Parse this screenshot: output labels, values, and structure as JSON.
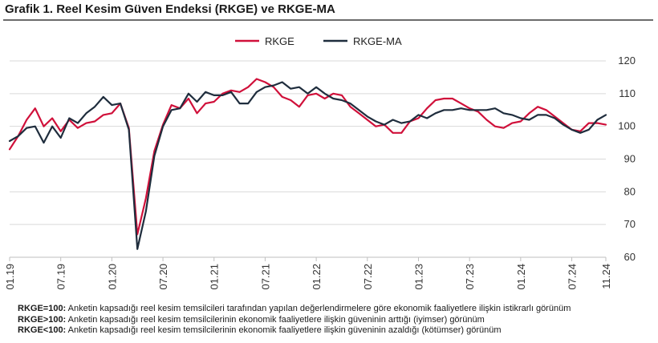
{
  "title": "Grafik 1. Reel Kesim Güven Endeksi (RKGE) ve RKGE-MA",
  "colors": {
    "RKGE": "#d0103a",
    "RKGE-MA": "#1f2d3d",
    "grid": "#d9d9d9"
  },
  "chart_data": {
    "type": "line",
    "title": "Grafik 1. Reel Kesim Güven Endeksi (RKGE) ve RKGE-MA",
    "xlabel": "",
    "ylabel": "",
    "ylim": [
      60,
      120
    ],
    "yticks": [
      60,
      70,
      80,
      90,
      100,
      110,
      120
    ],
    "y_axis_position": "right",
    "grid": "horizontal",
    "legend": "top-center",
    "x": [
      "01.19",
      "02.19",
      "03.19",
      "04.19",
      "05.19",
      "06.19",
      "07.19",
      "08.19",
      "09.19",
      "10.19",
      "11.19",
      "12.19",
      "01.20",
      "02.20",
      "03.20",
      "04.20",
      "05.20",
      "06.20",
      "07.20",
      "08.20",
      "09.20",
      "10.20",
      "11.20",
      "12.20",
      "01.21",
      "02.21",
      "03.21",
      "04.21",
      "05.21",
      "06.21",
      "07.21",
      "08.21",
      "09.21",
      "10.21",
      "11.21",
      "12.21",
      "01.22",
      "02.22",
      "03.22",
      "04.22",
      "05.22",
      "06.22",
      "07.22",
      "08.22",
      "09.22",
      "10.22",
      "11.22",
      "12.22",
      "01.23",
      "02.23",
      "03.23",
      "04.23",
      "05.23",
      "06.23",
      "07.23",
      "08.23",
      "09.23",
      "10.23",
      "11.23",
      "12.23",
      "01.24",
      "02.24",
      "03.24",
      "04.24",
      "05.24",
      "06.24",
      "07.24",
      "08.24",
      "09.24",
      "10.24",
      "11.24"
    ],
    "xtick_labels": [
      "01.19",
      "07.19",
      "01.20",
      "07.20",
      "01.21",
      "07.21",
      "01.22",
      "07.22",
      "01.23",
      "07.23",
      "01.24",
      "07.24",
      "11.24"
    ],
    "series": [
      {
        "name": "RKGE",
        "values": [
          93,
          97,
          102,
          105.5,
          100,
          102.5,
          98.5,
          102,
          99.5,
          101,
          101.5,
          103.5,
          104,
          107,
          99.5,
          67,
          78,
          92.5,
          100.5,
          106.5,
          105.5,
          108.5,
          104,
          107,
          107.5,
          110,
          111,
          110.5,
          112,
          114.5,
          113.5,
          112,
          109,
          108,
          106,
          109.5,
          110,
          108.5,
          110,
          109.5,
          106,
          104,
          102,
          100,
          100.5,
          98,
          98,
          101.5,
          102.5,
          105.5,
          108,
          108.5,
          108.5,
          107,
          105.5,
          104.5,
          102,
          100,
          99.5,
          101,
          101.5,
          104,
          106,
          105,
          103,
          101,
          99,
          98.5,
          101,
          101,
          100.5
        ]
      },
      {
        "name": "RKGE-MA",
        "values": [
          95.5,
          97,
          99.5,
          100,
          95,
          100,
          96.5,
          102.5,
          101,
          104,
          106,
          109,
          106.5,
          107,
          99,
          62.5,
          74,
          91,
          100,
          105,
          105.5,
          110,
          107.5,
          110.5,
          109.5,
          109.5,
          110.5,
          107,
          107,
          110.5,
          112,
          112.5,
          113.5,
          111.5,
          112,
          110,
          112,
          110,
          108.5,
          108,
          107,
          105,
          103,
          101.5,
          100.5,
          102,
          101,
          101.5,
          103.5,
          102.5,
          104,
          105,
          105,
          105.5,
          105,
          105,
          105,
          105.5,
          104,
          103.5,
          102.5,
          102,
          103.5,
          103.5,
          102.5,
          100.5,
          99,
          98,
          99,
          102,
          103.5
        ]
      }
    ]
  },
  "notes": [
    {
      "label": "RKGE=100:",
      "text": " Anketin kapsadığı reel kesim temsilcileri tarafından yapılan değerlendirmelere göre ekonomik faaliyetlere ilişkin istikrarlı görünüm"
    },
    {
      "label": "RKGE>100:",
      "text": " Anketin kapsadığı reel kesim temsilcilerinin ekonomik faaliyetlere ilişkin güveninin arttığı (iyimser) görünüm"
    },
    {
      "label": "RKGE<100:",
      "text": " Anketin kapsadığı reel kesim temsilcilerinin ekonomik faaliyetlere ilişkin güveninin azaldığı (kötümser) görünüm"
    }
  ]
}
